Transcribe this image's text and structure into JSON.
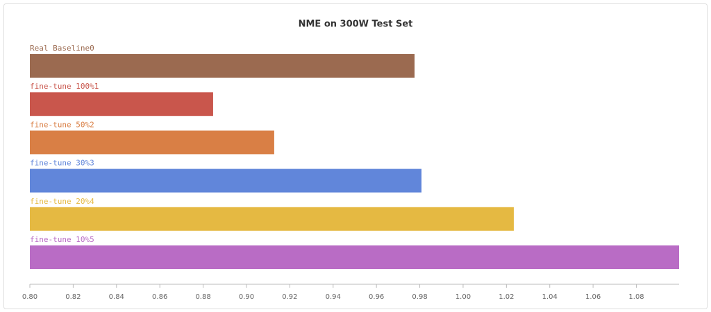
{
  "chart_data": {
    "type": "hbar",
    "title": "NME on 300W Test Set",
    "categories": [
      "Real Baseline0",
      "fine-tune 100%1",
      "fine-tune 50%2",
      "fine-tune 30%3",
      "fine-tune 20%4",
      "fine-tune 10%5"
    ],
    "values": [
      0.9776,
      0.8846,
      0.9128,
      0.9808,
      1.0234,
      1.0997
    ],
    "colors": [
      "#9b6a50",
      "#c9564c",
      "#d97f45",
      "#6186da",
      "#e5b942",
      "#b96cc5"
    ],
    "xlim": [
      0.8,
      1.0997
    ],
    "xticks": [
      {
        "value": 0.8,
        "label": "0.80"
      },
      0.82,
      0.84,
      0.86,
      0.88,
      {
        "value": 0.9,
        "label": "0.90"
      },
      0.92,
      0.94,
      0.96,
      0.98,
      {
        "value": 1.0,
        "label": "1.00"
      },
      1.02,
      1.04,
      1.06,
      1.08
    ]
  }
}
